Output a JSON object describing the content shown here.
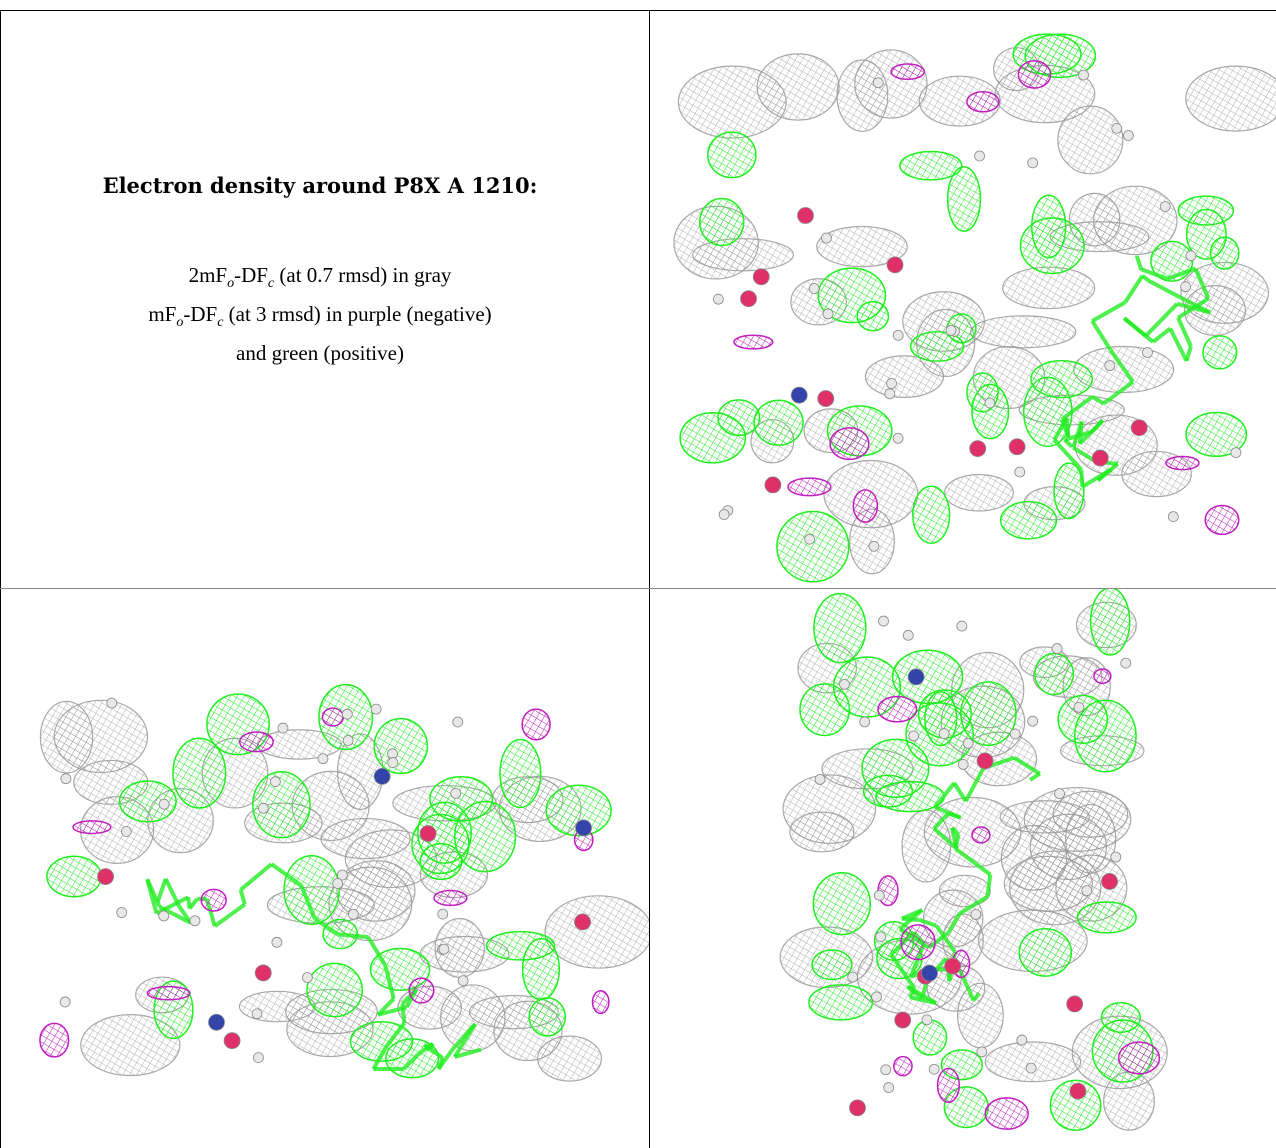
{
  "figure": {
    "title": "Electron density around P8X A 1210:",
    "legend_line1": {
      "prefix": "2mF",
      "o": "o",
      "mid": "-DF",
      "c": "c",
      "rest": " (at 0.7 rmsd) in gray"
    },
    "legend_line2": {
      "prefix": "mF",
      "o": "o",
      "mid": "-DF",
      "c": "c",
      "rest": " (at 3 rmsd) in purple (negative)"
    },
    "legend_line3": "and green (positive)",
    "colors": {
      "map_2fofc": "#9a9a9a",
      "map_fofc_negative": "#c020c0",
      "map_fofc_positive": "#22ee22",
      "oxygen": "#e0306a",
      "nitrogen": "#3344aa",
      "atom_white": "#e8e8e8"
    },
    "panels": [
      "view-1",
      "view-2",
      "view-3"
    ]
  }
}
